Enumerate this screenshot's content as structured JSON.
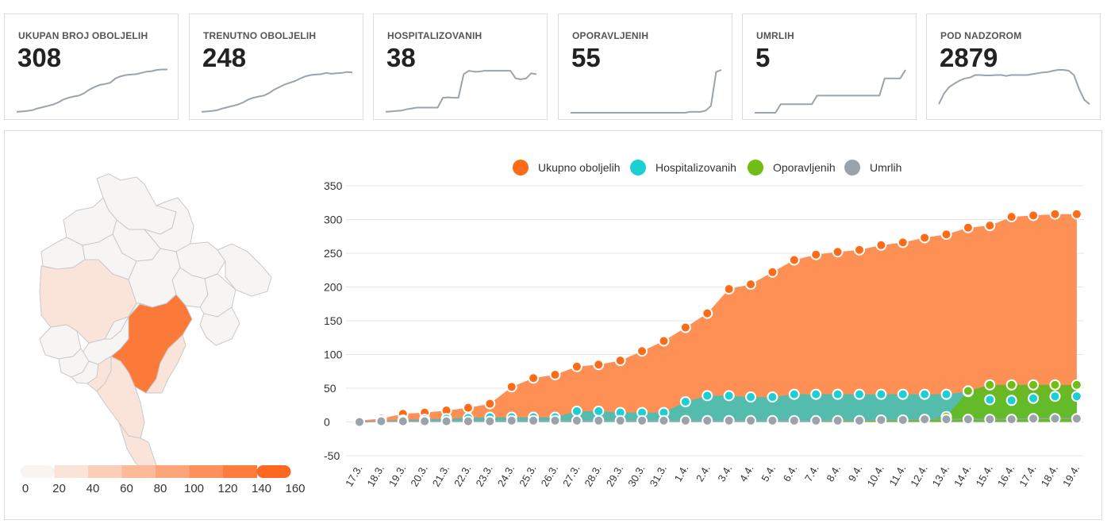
{
  "cards": [
    {
      "label": "UKUPAN BROJ OBOLJELIH",
      "value": "308",
      "spark": [
        2,
        3,
        4,
        6,
        10,
        13,
        16,
        19,
        24,
        31,
        35,
        38,
        40,
        46,
        54,
        60,
        65,
        67,
        70,
        80,
        85,
        88,
        89,
        90,
        93,
        96,
        97,
        100,
        101,
        101
      ]
    },
    {
      "label": "TRENUTNO OBOLJELIH",
      "value": "248",
      "spark": [
        2,
        3,
        4,
        6,
        10,
        13,
        16,
        19,
        24,
        31,
        35,
        38,
        40,
        46,
        54,
        60,
        66,
        70,
        74,
        80,
        85,
        88,
        89,
        90,
        93,
        91,
        92,
        93,
        95,
        94
      ]
    },
    {
      "label": "HOSPITALIZOVANIH",
      "value": "38",
      "spark": [
        2,
        3,
        4,
        5,
        8,
        10,
        12,
        12,
        12,
        12,
        12,
        35,
        36,
        35,
        35,
        90,
        98,
        96,
        96,
        98,
        98,
        98,
        98,
        98,
        98,
        80,
        78,
        80,
        92,
        90
      ]
    },
    {
      "label": "OPORAVLJENIH",
      "value": "55",
      "spark": [
        0,
        0,
        0,
        0,
        0,
        0,
        0,
        0,
        0,
        0,
        0,
        0,
        0,
        0,
        0,
        0,
        0,
        0,
        0,
        0,
        0,
        0,
        0,
        2,
        2,
        2,
        5,
        16,
        95,
        100
      ]
    },
    {
      "label": "UMRLIH",
      "value": "5",
      "spark": [
        0,
        0,
        0,
        0,
        0,
        20,
        20,
        20,
        20,
        20,
        20,
        20,
        40,
        40,
        40,
        40,
        40,
        40,
        40,
        40,
        40,
        40,
        40,
        40,
        40,
        80,
        80,
        80,
        80,
        100
      ]
    },
    {
      "label": "POD NADZOROM",
      "value": "2879",
      "spark": [
        20,
        45,
        60,
        68,
        75,
        80,
        82,
        88,
        88,
        87,
        87,
        88,
        88,
        86,
        88,
        88,
        88,
        88,
        90,
        92,
        94,
        95,
        98,
        100,
        100,
        98,
        88,
        55,
        30,
        20
      ]
    }
  ],
  "map": {
    "legend_ticks": [
      "0",
      "20",
      "40",
      "60",
      "80",
      "100",
      "120",
      "140",
      "160"
    ],
    "legend_colors": [
      "#f9f4f1",
      "#fae3d9",
      "#fbcfb8",
      "#fcba98",
      "#fca57a",
      "#fc915c",
      "#fd7c3e",
      "#fe6821"
    ],
    "region_fill": {
      "base": "#f7f5f4",
      "light": "#fae4da",
      "highlight": "#fb7a3a"
    }
  },
  "chart_data": {
    "type": "area",
    "x": [
      "17.3.",
      "18.3.",
      "19.3.",
      "20.3.",
      "21.3.",
      "22.3.",
      "23.3.",
      "24.3.",
      "25.3.",
      "26.3.",
      "27.3.",
      "28.3.",
      "29.3.",
      "30.3.",
      "31.3.",
      "1.4.",
      "2.4.",
      "3.4.",
      "4.4.",
      "5.4.",
      "6.4.",
      "7.4.",
      "8.4.",
      "9.4.",
      "10.4.",
      "11.4.",
      "12.4.",
      "13.4.",
      "14.4.",
      "15.4.",
      "16.4.",
      "17.4.",
      "18.4.",
      "19.4."
    ],
    "series": [
      {
        "name": "Ukupno oboljelih",
        "color": "#fd6a18",
        "fill": "#fe8a4c",
        "values": [
          2,
          5,
          12,
          14,
          17,
          21,
          27,
          52,
          65,
          70,
          82,
          85,
          91,
          105,
          120,
          140,
          161,
          197,
          204,
          222,
          240,
          248,
          252,
          255,
          262,
          266,
          273,
          278,
          288,
          291,
          304,
          306,
          308,
          308
        ]
      },
      {
        "name": "Hospitalizovanih",
        "color": "#1ccfd2",
        "fill": "#4bbfb1",
        "values": [
          0,
          2,
          3,
          4,
          5,
          6,
          7,
          7,
          7,
          7,
          16,
          16,
          14,
          14,
          14,
          30,
          39,
          39,
          37,
          37,
          41,
          41,
          41,
          41,
          41,
          41,
          41,
          41,
          45,
          33,
          32,
          35,
          38,
          38
        ]
      },
      {
        "name": "Oporavljenih",
        "color": "#6fbd17",
        "fill": "#64ba22",
        "values": [
          0,
          0,
          0,
          0,
          0,
          0,
          0,
          0,
          0,
          0,
          0,
          0,
          0,
          0,
          0,
          0,
          0,
          0,
          0,
          0,
          0,
          0,
          1,
          1,
          2,
          2,
          3,
          8,
          46,
          55,
          55,
          55,
          55,
          55
        ]
      },
      {
        "name": "Umrlih",
        "color": "#9aa2ab",
        "fill": "#9aa2ab",
        "values": [
          0,
          1,
          1,
          1,
          1,
          1,
          1,
          2,
          2,
          2,
          2,
          2,
          2,
          2,
          2,
          2,
          2,
          2,
          2,
          2,
          2,
          2,
          2,
          2,
          3,
          3,
          4,
          4,
          4,
          4,
          4,
          5,
          5,
          5
        ]
      }
    ],
    "y_ticks": [
      -50,
      0,
      50,
      100,
      150,
      200,
      250,
      300,
      350
    ],
    "ylim": [
      -50,
      350
    ],
    "grid": true,
    "legend_position": "top"
  }
}
